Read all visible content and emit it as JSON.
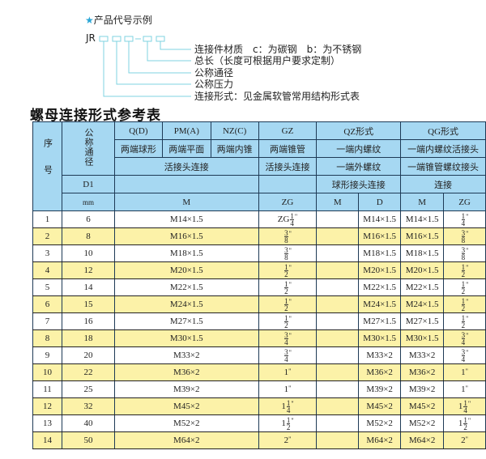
{
  "example": {
    "title": "产品代号示例",
    "prefix": "JR",
    "labels": [
      "连接件材质　c：为碳钢　b：为不锈钢",
      "总长（长度可根据用户要求定制）",
      "公称通径",
      "公称压力",
      "连接形式：见金属软管常用结构形式表"
    ]
  },
  "table_title": "螺母连接形式参考表",
  "header": {
    "seq": "序号",
    "nominal": "公称通径",
    "d1": "D1",
    "mm": "mm",
    "q": "Q(D)",
    "pm": "PM(A)",
    "nz": "NZ(C)",
    "gz": "GZ",
    "qz": "QZ形式",
    "qg": "QG形式",
    "q_desc": "两端球形",
    "pm_desc": "两端平面",
    "nz_desc": "两端内锥",
    "gz_desc": "两端锥管",
    "qz_desc": "一端内螺纹",
    "qg_desc": "一端内螺纹活接头",
    "union": "活接头连接",
    "gz_union": "活接头连接",
    "qz_desc2": "一端外螺纹",
    "qg_desc2": "一端锥管螺纹接头",
    "qz_desc3": "球形接头连接",
    "qg_desc3": "连接",
    "m": "M",
    "zg": "ZG",
    "qz_m": "M",
    "qz_d": "D",
    "qg_m": "M",
    "qg_zg": "ZG"
  },
  "rows": [
    {
      "n": "1",
      "d": "6",
      "m": "M14×1.5",
      "zg": {
        "pre": "ZG",
        "int": "",
        "num": "1",
        "den": "4"
      },
      "qzd": "M14×1.5",
      "qgm": "M14×1.5",
      "qgzg": {
        "pre": "",
        "int": "",
        "num": "1",
        "den": "4"
      }
    },
    {
      "n": "2",
      "d": "8",
      "m": "M16×1.5",
      "zg": {
        "pre": "",
        "int": "",
        "num": "3",
        "den": "8"
      },
      "qzd": "M16×1.5",
      "qgm": "M16×1.5",
      "qgzg": {
        "pre": "",
        "int": "",
        "num": "3",
        "den": "8"
      }
    },
    {
      "n": "3",
      "d": "10",
      "m": "M18×1.5",
      "zg": {
        "pre": "",
        "int": "",
        "num": "3",
        "den": "8"
      },
      "qzd": "M18×1.5",
      "qgm": "M18×1.5",
      "qgzg": {
        "pre": "",
        "int": "",
        "num": "3",
        "den": "8"
      }
    },
    {
      "n": "4",
      "d": "12",
      "m": "M20×1.5",
      "zg": {
        "pre": "",
        "int": "",
        "num": "1",
        "den": "2"
      },
      "qzd": "M20×1.5",
      "qgm": "M20×1.5",
      "qgzg": {
        "pre": "",
        "int": "",
        "num": "1",
        "den": "2"
      }
    },
    {
      "n": "5",
      "d": "14",
      "m": "M22×1.5",
      "zg": {
        "pre": "",
        "int": "",
        "num": "1",
        "den": "2"
      },
      "qzd": "M22×1.5",
      "qgm": "M22×1.5",
      "qgzg": {
        "pre": "",
        "int": "",
        "num": "1",
        "den": "2"
      }
    },
    {
      "n": "6",
      "d": "15",
      "m": "M24×1.5",
      "zg": {
        "pre": "",
        "int": "",
        "num": "1",
        "den": "2"
      },
      "qzd": "M24×1.5",
      "qgm": "M24×1.5",
      "qgzg": {
        "pre": "",
        "int": "",
        "num": "1",
        "den": "2"
      }
    },
    {
      "n": "7",
      "d": "16",
      "m": "M27×1.5",
      "zg": {
        "pre": "",
        "int": "",
        "num": "1",
        "den": "2"
      },
      "qzd": "M27×1.5",
      "qgm": "M27×1.5",
      "qgzg": {
        "pre": "",
        "int": "",
        "num": "1",
        "den": "2"
      }
    },
    {
      "n": "8",
      "d": "18",
      "m": "M30×1.5",
      "zg": {
        "pre": "",
        "int": "",
        "num": "3",
        "den": "4"
      },
      "qzd": "M30×1.5",
      "qgm": "M30×1.5",
      "qgzg": {
        "pre": "",
        "int": "",
        "num": "3",
        "den": "4"
      }
    },
    {
      "n": "9",
      "d": "20",
      "m": "M33×2",
      "zg": {
        "pre": "",
        "int": "",
        "num": "3",
        "den": "4"
      },
      "qzd": "M33×2",
      "qgm": "M33×2",
      "qgzg": {
        "pre": "",
        "int": "",
        "num": "3",
        "den": "4"
      }
    },
    {
      "n": "10",
      "d": "22",
      "m": "M36×2",
      "zg": {
        "pre": "",
        "int": "1",
        "num": "",
        "den": ""
      },
      "qzd": "M36×2",
      "qgm": "M36×2",
      "qgzg": {
        "pre": "",
        "int": "1",
        "num": "",
        "den": ""
      }
    },
    {
      "n": "11",
      "d": "25",
      "m": "M39×2",
      "zg": {
        "pre": "",
        "int": "1",
        "num": "",
        "den": ""
      },
      "qzd": "M39×2",
      "qgm": "M39×2",
      "qgzg": {
        "pre": "",
        "int": "1",
        "num": "",
        "den": ""
      }
    },
    {
      "n": "12",
      "d": "32",
      "m": "M45×2",
      "zg": {
        "pre": "",
        "int": "1",
        "num": "1",
        "den": "4"
      },
      "qzd": "M45×2",
      "qgm": "M45×2",
      "qgzg": {
        "pre": "",
        "int": "1",
        "num": "1",
        "den": "4"
      }
    },
    {
      "n": "13",
      "d": "40",
      "m": "M52×2",
      "zg": {
        "pre": "",
        "int": "1",
        "num": "1",
        "den": "2"
      },
      "qzd": "M52×2",
      "qgm": "M52×2",
      "qgzg": {
        "pre": "",
        "int": "1",
        "num": "1",
        "den": "2"
      }
    },
    {
      "n": "14",
      "d": "50",
      "m": "M64×2",
      "zg": {
        "pre": "",
        "int": "2",
        "num": "",
        "den": ""
      },
      "qzd": "M64×2",
      "qgm": "M64×2",
      "qgzg": {
        "pre": "",
        "int": "2",
        "num": "",
        "den": ""
      }
    }
  ],
  "inch_mark": "\"",
  "colors": {
    "header": "#a6d8f2",
    "stripe": "#fcf2a8",
    "line": "#7fd3e0",
    "star": "#2aa6d6"
  }
}
